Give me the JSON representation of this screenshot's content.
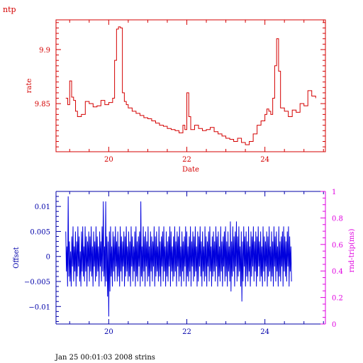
{
  "header": {
    "title": "ntp"
  },
  "footer": {
    "caption": "Jan 25 00:01:03 2008 strins"
  },
  "colors": {
    "top": "#d40000",
    "offset": "#0000dd",
    "rtt": "#e000e0",
    "axis_bottom": "#0000aa"
  },
  "chart_data": [
    {
      "type": "line",
      "title": "",
      "xlabel": "Date",
      "ylabel": "rate",
      "xlim": [
        18.65,
        25.55
      ],
      "ylim": [
        9.8055,
        9.9275
      ],
      "xticks": [
        20,
        22,
        24
      ],
      "yticks": [
        9.85,
        9.9
      ],
      "ytick_labels": [
        "9.85",
        "9.9"
      ],
      "grid": false,
      "series": [
        {
          "name": "",
          "x": [
            18.9,
            18.95,
            19.0,
            19.05,
            19.1,
            19.15,
            19.2,
            19.3,
            19.4,
            19.5,
            19.6,
            19.7,
            19.8,
            19.9,
            20.0,
            20.1,
            20.15,
            20.2,
            20.25,
            20.3,
            20.35,
            20.4,
            20.45,
            20.5,
            20.6,
            20.7,
            20.8,
            20.9,
            21.0,
            21.1,
            21.2,
            21.3,
            21.4,
            21.5,
            21.6,
            21.7,
            21.8,
            21.9,
            21.95,
            22.0,
            22.05,
            22.1,
            22.2,
            22.3,
            22.4,
            22.5,
            22.6,
            22.7,
            22.8,
            22.9,
            23.0,
            23.1,
            23.2,
            23.3,
            23.4,
            23.5,
            23.6,
            23.7,
            23.8,
            23.9,
            24.0,
            24.05,
            24.1,
            24.15,
            24.2,
            24.25,
            24.3,
            24.35,
            24.4,
            24.5,
            24.6,
            24.7,
            24.8,
            24.9,
            25.0,
            25.1,
            25.2,
            25.3
          ],
          "values": [
            9.855,
            9.849,
            9.871,
            9.856,
            9.853,
            9.843,
            9.838,
            9.84,
            9.852,
            9.85,
            9.847,
            9.848,
            9.853,
            9.849,
            9.851,
            9.855,
            9.89,
            9.919,
            9.921,
            9.92,
            9.86,
            9.852,
            9.849,
            9.846,
            9.843,
            9.841,
            9.839,
            9.837,
            9.836,
            9.834,
            9.832,
            9.83,
            9.829,
            9.827,
            9.826,
            9.825,
            9.823,
            9.83,
            9.826,
            9.86,
            9.838,
            9.826,
            9.83,
            9.827,
            9.825,
            9.826,
            9.828,
            9.824,
            9.822,
            9.82,
            9.818,
            9.817,
            9.815,
            9.818,
            9.814,
            9.812,
            9.815,
            9.822,
            9.83,
            9.834,
            9.84,
            9.845,
            9.843,
            9.84,
            9.855,
            9.885,
            9.91,
            9.88,
            9.846,
            9.843,
            9.838,
            9.844,
            9.842,
            9.85,
            9.848,
            9.862,
            9.857,
            9.855
          ]
        }
      ]
    },
    {
      "type": "line",
      "title": "",
      "xlabel": "",
      "ylabel": "Offset",
      "y2label": "rnd-trip(ms)",
      "xlim": [
        18.65,
        25.55
      ],
      "ylim": [
        -0.0135,
        0.013
      ],
      "y2lim": [
        0,
        1
      ],
      "xticks": [
        20,
        22,
        24
      ],
      "yticks": [
        0.01,
        0.005,
        0,
        -0.005,
        -0.01
      ],
      "ytick_labels": [
        "0.01",
        "0.005",
        "0",
        "−0.005",
        "−0.01"
      ],
      "y2ticks": [
        0,
        0.2,
        0.4,
        0.6,
        0.8,
        1
      ],
      "y2tick_labels": [
        "0",
        "0.2",
        "0.4",
        "0.6",
        "0.8",
        "1"
      ],
      "grid": false,
      "series": [
        {
          "name": "",
          "x_start": 18.9,
          "x_step": 0.0155,
          "values": [
            0.005,
            -0.003,
            0.002,
            -0.006,
            0.012,
            -0.004,
            0.003,
            -0.005,
            0.001,
            -0.006,
            0.004,
            -0.002,
            0.006,
            -0.005,
            0.002,
            -0.003,
            0.005,
            -0.006,
            0.003,
            -0.004,
            0.006,
            -0.002,
            0.004,
            -0.005,
            0.001,
            -0.006,
            0.005,
            -0.003,
            0.006,
            -0.004,
            0.002,
            -0.005,
            0.006,
            -0.003,
            0.004,
            -0.006,
            0.003,
            -0.002,
            0.005,
            -0.005,
            0.004,
            -0.003,
            0.006,
            -0.004,
            0.002,
            -0.006,
            0.005,
            -0.002,
            0.003,
            -0.005,
            0.006,
            -0.004,
            0.004,
            -0.003,
            0.002,
            -0.006,
            0.005,
            -0.002,
            0.003,
            -0.005,
            0.006,
            -0.003,
            0.011,
            -0.004,
            0.002,
            -0.006,
            0.011,
            -0.005,
            0.004,
            -0.008,
            0.003,
            -0.012,
            0.005,
            -0.007,
            0.006,
            -0.004,
            0.002,
            -0.006,
            0.005,
            -0.003,
            0.004,
            -0.005,
            0.006,
            -0.002,
            0.003,
            -0.005,
            0.005,
            -0.004,
            0.002,
            -0.006,
            0.006,
            -0.003,
            0.004,
            -0.005,
            0.003,
            -0.002,
            0.005,
            -0.006,
            0.004,
            -0.004,
            0.006,
            -0.003,
            0.002,
            -0.005,
            0.005,
            -0.004,
            0.003,
            -0.006,
            0.006,
            -0.002,
            0.004,
            -0.005,
            0.002,
            -0.003,
            0.005,
            -0.006,
            0.006,
            -0.004,
            0.003,
            -0.005,
            0.004,
            -0.002,
            0.005,
            -0.006,
            0.011,
            -0.004,
            0.002,
            -0.005,
            0.006,
            -0.003,
            0.004,
            -0.006,
            0.005,
            -0.002,
            0.003,
            -0.005,
            0.006,
            -0.004,
            0.002,
            -0.006,
            0.005,
            -0.003,
            0.004,
            -0.005,
            0.003,
            -0.002,
            0.006,
            -0.006,
            0.004,
            -0.004,
            0.005,
            -0.003,
            0.002,
            -0.005,
            0.006,
            -0.004,
            0.003,
            -0.006,
            0.004,
            -0.002,
            0.005,
            -0.005,
            0.006,
            -0.003,
            0.002,
            -0.006,
            0.005,
            -0.004,
            0.003,
            -0.005,
            0.004,
            -0.002,
            0.006,
            -0.006,
            0.005,
            -0.003,
            0.002,
            -0.005,
            0.004,
            -0.004,
            0.006,
            -0.003,
            0.003,
            -0.006,
            0.005,
            -0.002,
            0.004,
            -0.005,
            0.006,
            -0.004,
            0.002,
            -0.006,
            0.005,
            -0.003,
            0.003,
            -0.005,
            0.004,
            -0.002,
            0.006,
            -0.006,
            0.005,
            -0.004,
            0.002,
            -0.005,
            0.004,
            -0.003,
            0.006,
            -0.006,
            0.003,
            -0.002,
            0.005,
            -0.005,
            0.004,
            -0.004,
            0.006,
            -0.003,
            0.002,
            -0.006,
            0.005,
            -0.005,
            0.004,
            -0.002,
            0.006,
            -0.004,
            0.003,
            -0.006,
            0.005,
            -0.003,
            0.002,
            -0.005,
            0.006,
            -0.004,
            0.004,
            -0.006,
            0.003,
            -0.002,
            0.005,
            -0.005,
            0.006,
            -0.003,
            0.002,
            -0.006,
            0.004,
            -0.004,
            0.005,
            -0.003,
            0.003,
            -0.005,
            0.006,
            -0.002,
            0.004,
            -0.006,
            0.005,
            -0.004,
            0.002,
            -0.005,
            0.006,
            -0.003,
            0.003,
            -0.006,
            0.004,
            -0.002,
            0.005,
            -0.005,
            0.006,
            -0.004,
            0.003,
            -0.006,
            0.005,
            -0.003,
            0.002,
            -0.005,
            0.007,
            -0.007,
            0.003,
            -0.004,
            0.006,
            -0.003,
            0.004,
            -0.006,
            0.005,
            -0.002,
            0.007,
            -0.005,
            0.004,
            -0.004,
            0.006,
            -0.003,
            0.002,
            -0.006,
            0.005,
            -0.009,
            0.003,
            -0.005,
            0.006,
            -0.002,
            0.004,
            -0.006,
            0.005,
            -0.004,
            0.003,
            -0.005,
            0.006,
            -0.003,
            0.002,
            -0.006,
            0.005,
            -0.004,
            0.004,
            -0.002,
            0.006,
            -0.005,
            0.003,
            -0.003,
            0.005,
            -0.006,
            0.004,
            -0.004,
            0.006,
            -0.002,
            0.003,
            -0.005,
            0.005,
            -0.004,
            0.002,
            -0.006,
            0.006,
            -0.003,
            0.004,
            -0.005,
            0.003,
            -0.002,
            0.005,
            -0.006,
            0.004,
            -0.004,
            0.006,
            -0.003,
            0.002,
            -0.005,
            0.005,
            -0.004,
            0.003,
            -0.006,
            0.006,
            -0.002,
            0.004,
            -0.005,
            0.005,
            -0.003,
            0.002,
            -0.006,
            0.006,
            -0.004,
            0.003,
            -0.005,
            0.004,
            -0.002,
            0.005,
            -0.006,
            0.006,
            -0.003,
            0.004,
            -0.004,
            0.003,
            -0.005,
            0.005,
            -0.002,
            0.006,
            -0.006,
            0.004,
            -0.003,
            0.002,
            -0.005
          ]
        },
        {
          "name": "",
          "axis": "y2",
          "x": [],
          "values": []
        }
      ]
    }
  ]
}
